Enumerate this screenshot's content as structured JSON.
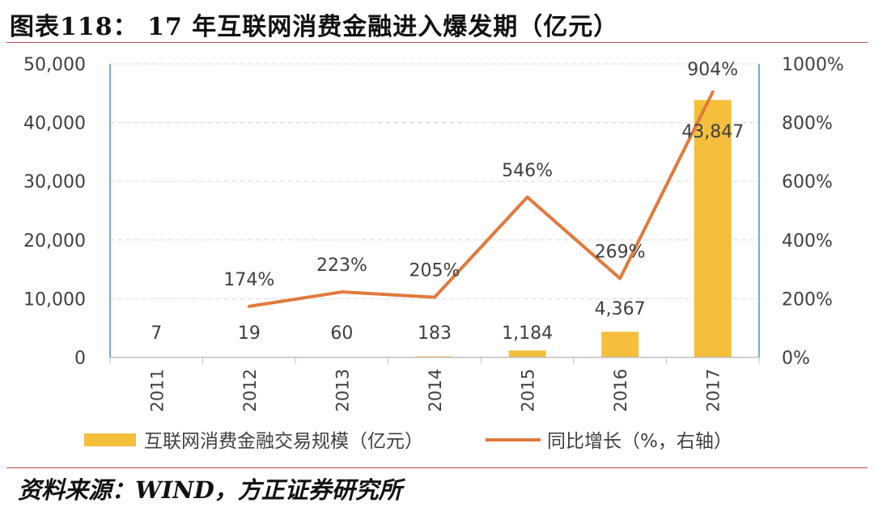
{
  "title": "图表118：  17 年互联网消费金融进入爆发期（亿元）",
  "source": "资料来源：WIND，方正证券研究所",
  "colors": {
    "bar": "#f5bf3c",
    "line": "#e07a3c",
    "grid": "#d9d9d9",
    "axis": "#4a90c8",
    "rule": "#c0504d"
  },
  "chart_data": {
    "type": "bar+line",
    "categories": [
      "2011",
      "2012",
      "2013",
      "2014",
      "2015",
      "2016",
      "2017"
    ],
    "bar_labels": [
      "7",
      "19",
      "60",
      "183",
      "1,184",
      "4,367",
      "43,847"
    ],
    "line_labels": [
      "",
      "174%",
      "223%",
      "205%",
      "546%",
      "269%",
      "904%"
    ],
    "y_left": {
      "lim": [
        0,
        50000
      ],
      "ticks": [
        0,
        10000,
        20000,
        30000,
        40000,
        50000
      ],
      "tick_labels": [
        "0",
        "10,000",
        "20,000",
        "30,000",
        "40,000",
        "50,000"
      ]
    },
    "y_right": {
      "lim": [
        0,
        1000
      ],
      "ticks": [
        0,
        200,
        400,
        600,
        800,
        1000
      ],
      "tick_labels": [
        "0%",
        "200%",
        "400%",
        "600%",
        "800%",
        "1000%"
      ]
    },
    "grid": true,
    "legend_position": "bottom",
    "series": [
      {
        "name": "互联网消费金融交易规模（亿元）",
        "kind": "bar",
        "axis": "left",
        "values": [
          7,
          19,
          60,
          183,
          1184,
          4367,
          43847
        ]
      },
      {
        "name": "同比增长（%，右轴）",
        "kind": "line",
        "axis": "right",
        "values": [
          null,
          174,
          223,
          205,
          546,
          269,
          904
        ]
      }
    ]
  }
}
